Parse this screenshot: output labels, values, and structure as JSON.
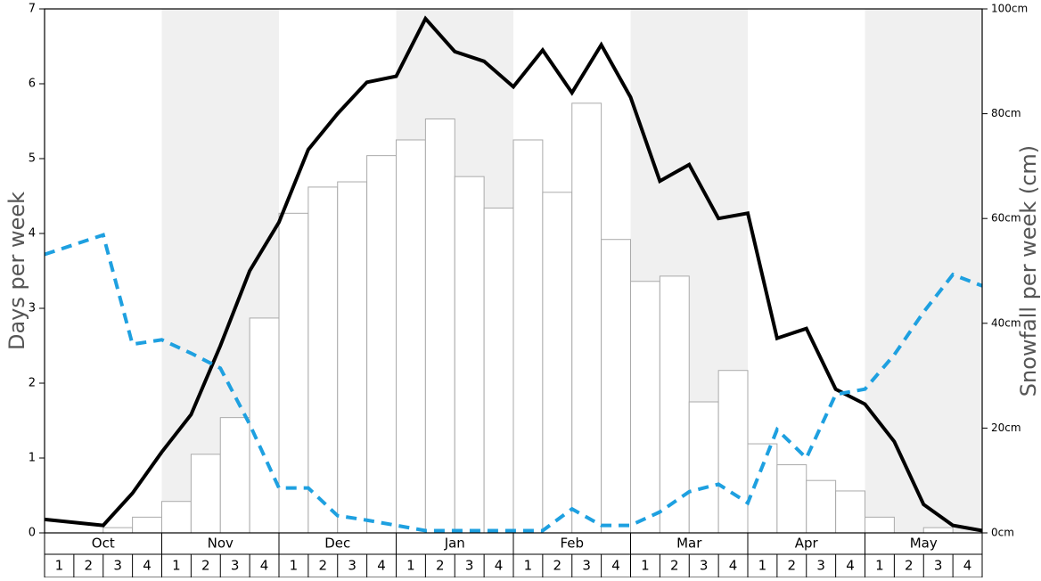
{
  "chart_data": {
    "type": "bar",
    "ylabel": "Days per week",
    "y2label": "Snowfall per week (cm)",
    "months": [
      "Oct",
      "Nov",
      "Dec",
      "Jan",
      "Feb",
      "Mar",
      "Apr",
      "May"
    ],
    "weeks": [
      1,
      2,
      3,
      4
    ],
    "shaded_months": [
      false,
      true,
      false,
      true,
      false,
      true,
      false,
      true
    ],
    "shade_color": "#f0f0f0",
    "ylim": [
      0,
      7
    ],
    "yticks": [
      0,
      1,
      2,
      3,
      4,
      5,
      6,
      7
    ],
    "y2lim": [
      0,
      100
    ],
    "y2ticks": [
      {
        "value": 0,
        "label": "0cm"
      },
      {
        "value": 20,
        "label": "20cm"
      },
      {
        "value": 40,
        "label": "40cm"
      },
      {
        "value": 60,
        "label": "60cm"
      },
      {
        "value": 80,
        "label": "80cm"
      },
      {
        "value": 100,
        "label": "100cm"
      }
    ],
    "series": [
      {
        "type": "bar",
        "axis": "y2",
        "color": "#ffffff",
        "edge_color": "#aaaaaa",
        "values": [
          0,
          0,
          1,
          3,
          6,
          15,
          22,
          41,
          61,
          66,
          67,
          72,
          75,
          79,
          68,
          62,
          75,
          65,
          82,
          56,
          48,
          49,
          25,
          31,
          17,
          13,
          10,
          8,
          3,
          0,
          1,
          0
        ]
      },
      {
        "type": "line",
        "color": "#000000",
        "dashed": false,
        "values": [
          0.18,
          0.14,
          0.1,
          0.53,
          1.08,
          1.58,
          2.5,
          3.5,
          4.15,
          5.12,
          5.6,
          6.02,
          6.1,
          6.87,
          6.43,
          6.3,
          5.96,
          6.45,
          5.88,
          6.52,
          5.82,
          4.7,
          4.92,
          4.2,
          4.27,
          2.6,
          2.73,
          1.92,
          1.72,
          1.22,
          0.38,
          0.1,
          0.03
        ]
      },
      {
        "type": "line",
        "color": "#1ea0e0",
        "dashed": true,
        "values": [
          3.72,
          3.85,
          3.98,
          2.52,
          2.58,
          2.4,
          2.2,
          1.45,
          0.6,
          0.6,
          0.23,
          0.17,
          0.1,
          0.03,
          0.03,
          0.03,
          0.03,
          0.03,
          0.32,
          0.1,
          0.1,
          0.28,
          0.55,
          0.65,
          0.4,
          1.38,
          1.0,
          1.85,
          1.92,
          2.38,
          2.95,
          3.45,
          3.3
        ]
      }
    ]
  }
}
